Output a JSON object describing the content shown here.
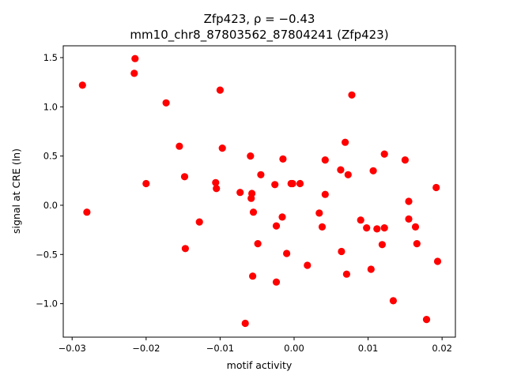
{
  "chart_data": {
    "type": "scatter",
    "title_line1": "Zfp423, ρ = −0.43",
    "title_line2": "mm10_chr8_87803562_87804241 (Zfp423)",
    "xlabel": "motif activity",
    "ylabel": "signal at CRE (ln)",
    "xlim": [
      -0.0312,
      0.0218
    ],
    "ylim": [
      -1.34,
      1.62
    ],
    "xticks": [
      -0.03,
      -0.02,
      -0.01,
      0.0,
      0.01,
      0.02
    ],
    "xtick_labels": [
      "−0.03",
      "−0.02",
      "−0.01",
      "0.00",
      "0.01",
      "0.02"
    ],
    "yticks": [
      -1.0,
      -0.5,
      0.0,
      0.5,
      1.0,
      1.5
    ],
    "ytick_labels": [
      "−1.0",
      "−0.5",
      "0.0",
      "0.5",
      "1.0",
      "1.5"
    ],
    "grid": false,
    "marker_color": "#ff0000",
    "points": [
      [
        -0.0286,
        1.22
      ],
      [
        -0.028,
        -0.07
      ],
      [
        -0.0215,
        1.49
      ],
      [
        -0.0216,
        1.34
      ],
      [
        -0.02,
        0.22
      ],
      [
        -0.0173,
        1.04
      ],
      [
        -0.0155,
        0.6
      ],
      [
        -0.0148,
        0.29
      ],
      [
        -0.0147,
        -0.44
      ],
      [
        -0.0128,
        -0.17
      ],
      [
        -0.0106,
        0.23
      ],
      [
        -0.0105,
        0.17
      ],
      [
        -0.01,
        1.17
      ],
      [
        -0.0097,
        0.58
      ],
      [
        -0.0073,
        0.13
      ],
      [
        -0.0066,
        -1.2
      ],
      [
        -0.0059,
        0.5
      ],
      [
        -0.0058,
        0.07
      ],
      [
        -0.0057,
        0.12
      ],
      [
        -0.0056,
        -0.72
      ],
      [
        -0.0055,
        -0.07
      ],
      [
        -0.0049,
        -0.39
      ],
      [
        -0.0045,
        0.31
      ],
      [
        -0.0026,
        0.21
      ],
      [
        -0.0024,
        -0.21
      ],
      [
        -0.0024,
        -0.78
      ],
      [
        -0.0016,
        -0.12
      ],
      [
        -0.0015,
        0.47
      ],
      [
        -0.001,
        -0.49
      ],
      [
        -0.0004,
        0.22
      ],
      [
        -0.0002,
        0.22
      ],
      [
        0.0008,
        0.22
      ],
      [
        0.0018,
        -0.61
      ],
      [
        0.0034,
        -0.08
      ],
      [
        0.0038,
        -0.22
      ],
      [
        0.0042,
        0.46
      ],
      [
        0.0042,
        0.11
      ],
      [
        0.0063,
        0.36
      ],
      [
        0.0064,
        -0.47
      ],
      [
        0.0069,
        0.64
      ],
      [
        0.0071,
        -0.7
      ],
      [
        0.0073,
        0.31
      ],
      [
        0.0078,
        1.12
      ],
      [
        0.009,
        -0.15
      ],
      [
        0.0098,
        -0.23
      ],
      [
        0.0104,
        -0.65
      ],
      [
        0.0107,
        0.35
      ],
      [
        0.0112,
        -0.24
      ],
      [
        0.0119,
        -0.4
      ],
      [
        0.0122,
        -0.23
      ],
      [
        0.0122,
        0.52
      ],
      [
        0.0134,
        -0.97
      ],
      [
        0.015,
        0.46
      ],
      [
        0.0155,
        0.04
      ],
      [
        0.0155,
        -0.14
      ],
      [
        0.0164,
        -0.22
      ],
      [
        0.0166,
        -0.39
      ],
      [
        0.0179,
        -1.16
      ],
      [
        0.0192,
        0.18
      ],
      [
        0.0194,
        -0.57
      ]
    ]
  }
}
